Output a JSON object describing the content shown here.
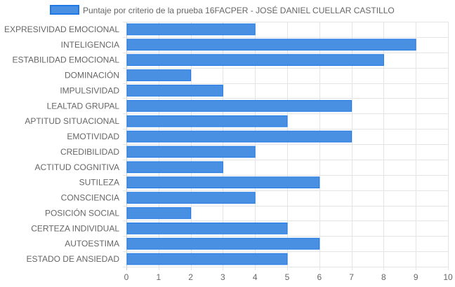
{
  "chart_data": {
    "type": "bar",
    "orientation": "horizontal",
    "categories": [
      "EXPRESIVIDAD EMOCIONAL",
      "INTELIGENCIA",
      "ESTABILIDAD EMOCIONAL",
      "DOMINACIÓN",
      "IMPULSIVIDAD",
      "LEALTAD GRUPAL",
      "APTITUD SITUACIONAL",
      "EMOTIVIDAD",
      "CREDIBILIDAD",
      "ACTITUD COGNITIVA",
      "SUTILEZA",
      "CONSCIENCIA",
      "POSICIÓN SOCIAL",
      "CERTEZA INDIVIDUAL",
      "AUTOESTIMA",
      "ESTADO DE ANSIEDAD"
    ],
    "series": [
      {
        "name": "Puntaje por criterio de la prueba 16FACPER - JOSÉ DANIEL CUELLAR CASTILLO",
        "values": [
          4,
          9,
          8,
          2,
          3,
          7,
          5,
          7,
          4,
          3,
          6,
          4,
          2,
          5,
          6,
          5
        ],
        "color": "#4a90e2",
        "border_color": "#1e78e6"
      }
    ],
    "xlim": [
      0,
      10
    ],
    "x_ticks": [
      "0",
      "1",
      "2",
      "3",
      "4",
      "5",
      "6",
      "7",
      "8",
      "9",
      "10"
    ],
    "grid": true,
    "legend_position": "top"
  }
}
